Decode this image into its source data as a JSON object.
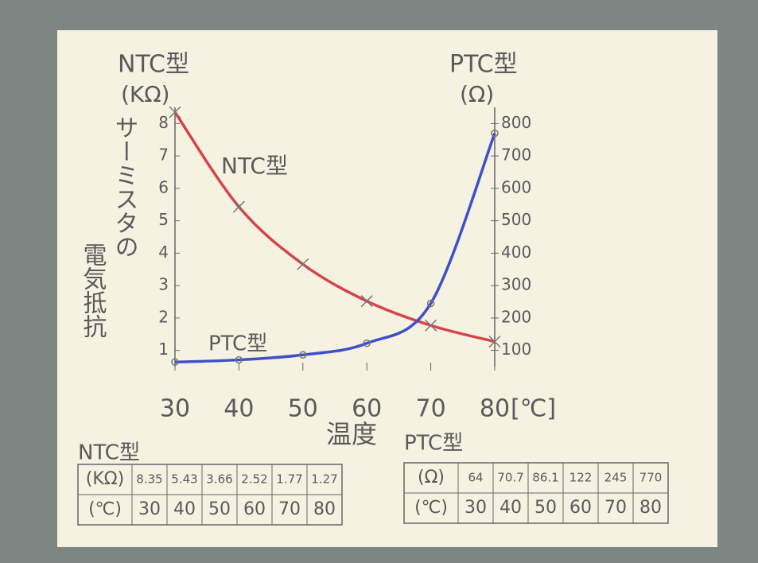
{
  "chart_data": {
    "type": "line",
    "x_label": "温度",
    "x_unit": "[℃]",
    "y_label": "NTC型",
    "y_unit": "(KΩ)",
    "y2_label": "PTC型",
    "y2_unit": "(Ω)",
    "side_label_lines": [
      "サーミスタの",
      "電気抵抗"
    ],
    "x": [
      30,
      40,
      50,
      60,
      70,
      80
    ],
    "xlim": [
      30,
      80
    ],
    "xticks": [
      30,
      40,
      50,
      60,
      70,
      80
    ],
    "ylim": [
      0.5,
      8.5
    ],
    "yticks": [
      1,
      2,
      3,
      4,
      5,
      6,
      7,
      8
    ],
    "y2lim": [
      50,
      850
    ],
    "y2ticks": [
      100,
      200,
      300,
      400,
      500,
      600,
      700,
      800
    ],
    "series": [
      {
        "name": "NTC型",
        "color": "#d8434a",
        "marker": "x",
        "values": [
          8.35,
          5.43,
          3.66,
          2.52,
          1.77,
          1.27
        ]
      },
      {
        "name": "PTC型",
        "color": "#3f4fc8",
        "marker": "o",
        "axis": "y2",
        "values": [
          64,
          70.7,
          86.1,
          122,
          245,
          770
        ]
      }
    ],
    "tables": [
      {
        "title": "NTC型",
        "row_headers": [
          "(KΩ)",
          "(℃)"
        ]
      },
      {
        "title": "PTC型",
        "row_headers": [
          "(Ω)",
          "(℃)"
        ]
      }
    ]
  }
}
